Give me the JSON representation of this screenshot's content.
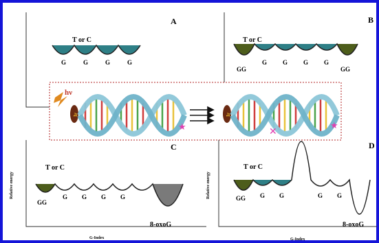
{
  "panels": {
    "A": {
      "letter": "A",
      "label": "T or C",
      "g": [
        "G",
        "G",
        "G",
        "G"
      ]
    },
    "B": {
      "letter": "B",
      "label": "T or C",
      "gg_left": "GG",
      "g": [
        "G",
        "G",
        "G",
        "G"
      ],
      "gg_right": "GG"
    },
    "C": {
      "letter": "C",
      "label": "T or C",
      "gg": "GG",
      "g": [
        "G",
        "G",
        "G",
        "G"
      ],
      "oxo": "8-oxoG",
      "ylabel": "Relative energy",
      "xlabel": "G-Index"
    },
    "D": {
      "letter": "D",
      "label": "T or C",
      "gg": "GG",
      "g": [
        "G",
        "G",
        "G",
        "G"
      ],
      "oxo": "8-oxoG",
      "ylabel": "Relative energy",
      "xlabel": "G-Index"
    }
  },
  "center": {
    "hv": "hν",
    "ir": "Ir"
  },
  "colors": {
    "frame_blue": "#1414d8",
    "well_teal": "#2e7f86",
    "well_olive": "#4d5d1b",
    "well_grey": "#7a7a7a",
    "dna_backbone": "#8cc6d8",
    "dna_base_red": "#cf3d3d",
    "dna_base_yellow": "#e8c23a",
    "dna_base_green": "#4aa34a",
    "dotted_box": "#b02020",
    "star_pink": "#e040b0",
    "hv_orange": "#e08a20"
  }
}
